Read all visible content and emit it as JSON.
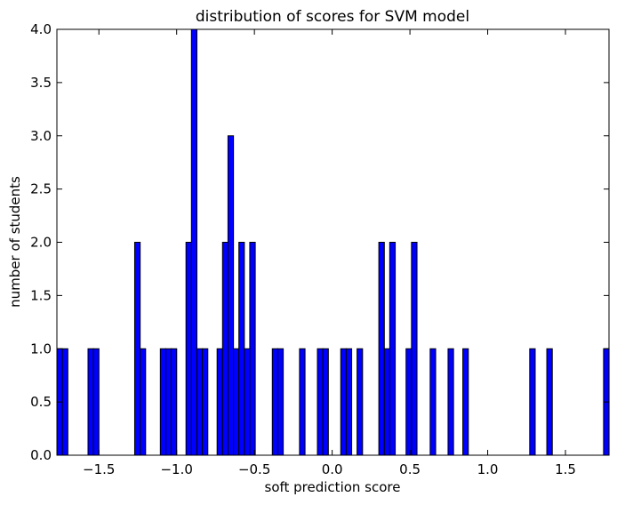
{
  "chart_data": {
    "type": "bar",
    "title": "distribution of scores for SVM model",
    "xlabel": "soft prediction score",
    "ylabel": "number of students",
    "xlim": [
      -1.77,
      1.78
    ],
    "ylim": [
      0,
      4.0
    ],
    "bin_width": 0.0355,
    "grid": false,
    "bar_color": "#0000ff",
    "x_ticks": [
      -1.5,
      -1.0,
      -0.5,
      0.0,
      0.5,
      1.0,
      1.5
    ],
    "x_tick_labels": [
      "−1.5",
      "−1.0",
      "−0.5",
      "0.0",
      "0.5",
      "1.0",
      "1.5"
    ],
    "y_ticks": [
      0.0,
      0.5,
      1.0,
      1.5,
      2.0,
      2.5,
      3.0,
      3.5,
      4.0
    ],
    "y_tick_labels": [
      "0.0",
      "0.5",
      "1.0",
      "1.5",
      "2.0",
      "2.5",
      "3.0",
      "3.5",
      "4.0"
    ],
    "bins": [
      {
        "x": -1.77,
        "count": 1
      },
      {
        "x": -1.735,
        "count": 1
      },
      {
        "x": -1.57,
        "count": 1
      },
      {
        "x": -1.535,
        "count": 1
      },
      {
        "x": -1.27,
        "count": 2
      },
      {
        "x": -1.235,
        "count": 1
      },
      {
        "x": -1.105,
        "count": 1
      },
      {
        "x": -1.07,
        "count": 1
      },
      {
        "x": -1.035,
        "count": 1
      },
      {
        "x": -0.94,
        "count": 2
      },
      {
        "x": -0.905,
        "count": 4
      },
      {
        "x": -0.87,
        "count": 1
      },
      {
        "x": -0.835,
        "count": 1
      },
      {
        "x": -0.74,
        "count": 1
      },
      {
        "x": -0.705,
        "count": 2
      },
      {
        "x": -0.67,
        "count": 3
      },
      {
        "x": -0.635,
        "count": 1
      },
      {
        "x": -0.6,
        "count": 2
      },
      {
        "x": -0.565,
        "count": 1
      },
      {
        "x": -0.53,
        "count": 2
      },
      {
        "x": -0.385,
        "count": 1
      },
      {
        "x": -0.35,
        "count": 1
      },
      {
        "x": -0.21,
        "count": 1
      },
      {
        "x": -0.095,
        "count": 1
      },
      {
        "x": -0.06,
        "count": 1
      },
      {
        "x": 0.055,
        "count": 1
      },
      {
        "x": 0.09,
        "count": 1
      },
      {
        "x": 0.16,
        "count": 1
      },
      {
        "x": 0.3,
        "count": 2
      },
      {
        "x": 0.335,
        "count": 1
      },
      {
        "x": 0.37,
        "count": 2
      },
      {
        "x": 0.475,
        "count": 1
      },
      {
        "x": 0.51,
        "count": 2
      },
      {
        "x": 0.63,
        "count": 1
      },
      {
        "x": 0.745,
        "count": 1
      },
      {
        "x": 0.84,
        "count": 1
      },
      {
        "x": 1.27,
        "count": 1
      },
      {
        "x": 1.38,
        "count": 1
      },
      {
        "x": 1.745,
        "count": 1
      }
    ]
  }
}
